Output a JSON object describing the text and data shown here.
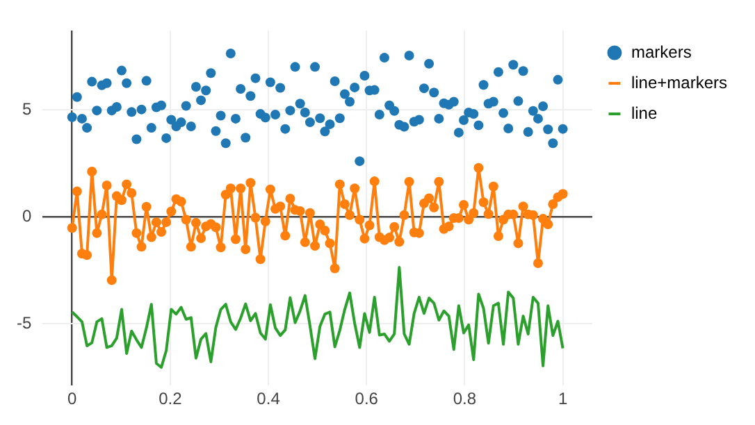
{
  "chart_data": {
    "type": "scatter",
    "x": [
      0,
      0.0101,
      0.0202,
      0.0303,
      0.0404,
      0.0505,
      0.0606,
      0.0707,
      0.0808,
      0.0909,
      0.101,
      0.1111,
      0.1212,
      0.1313,
      0.1414,
      0.1515,
      0.1616,
      0.1717,
      0.1818,
      0.1919,
      0.202,
      0.2121,
      0.2222,
      0.2323,
      0.2424,
      0.2525,
      0.2626,
      0.2727,
      0.2828,
      0.2929,
      0.303,
      0.3131,
      0.3232,
      0.3333,
      0.3434,
      0.3535,
      0.3636,
      0.3737,
      0.3838,
      0.3939,
      0.404,
      0.4141,
      0.4242,
      0.4343,
      0.4444,
      0.4545,
      0.4646,
      0.4747,
      0.4848,
      0.4949,
      0.5051,
      0.5152,
      0.5253,
      0.5354,
      0.5455,
      0.5556,
      0.5657,
      0.5758,
      0.5859,
      0.596,
      0.6061,
      0.6162,
      0.6263,
      0.6364,
      0.6465,
      0.6566,
      0.6667,
      0.6768,
      0.6869,
      0.697,
      0.7071,
      0.7172,
      0.7273,
      0.7374,
      0.7475,
      0.7576,
      0.7677,
      0.7778,
      0.7879,
      0.798,
      0.8081,
      0.8182,
      0.8283,
      0.8384,
      0.8485,
      0.8586,
      0.8687,
      0.8788,
      0.8889,
      0.899,
      0.9091,
      0.9192,
      0.9293,
      0.9394,
      0.9495,
      0.9596,
      0.9697,
      0.9798,
      0.9899,
      1
    ],
    "series": [
      {
        "name": "markers",
        "marker": "circle",
        "color": "#1f77b4",
        "values": [
          4.65,
          5.59,
          4.58,
          4.15,
          6.31,
          4.96,
          6.14,
          6.24,
          4.96,
          5.13,
          6.83,
          6.24,
          4.89,
          3.62,
          5.01,
          6.35,
          4.15,
          5.11,
          5.2,
          3.67,
          4.53,
          4.22,
          4.41,
          5.18,
          4.22,
          6.07,
          5.44,
          5.9,
          6.71,
          4.0,
          4.72,
          3.43,
          7.63,
          4.58,
          5.97,
          3.69,
          5.64,
          6.47,
          4.8,
          4.63,
          6.28,
          4.77,
          6.02,
          4.1,
          4.96,
          7.0,
          5.28,
          4.87,
          4.41,
          7.0,
          4.6,
          3.98,
          4.32,
          6.33,
          4.6,
          5.73,
          5.37,
          6.04,
          2.59,
          6.59,
          5.9,
          5.92,
          4.77,
          7.43,
          5.2,
          4.94,
          4.29,
          4.2,
          7.53,
          4.44,
          4.53,
          6.0,
          7.15,
          5.8,
          4.58,
          5.3,
          5.23,
          5.37,
          3.93,
          4.51,
          4.87,
          4.8,
          4.27,
          6.16,
          5.28,
          5.37,
          6.76,
          4.84,
          4.12,
          7.1,
          5.4,
          6.81,
          3.96,
          4.94,
          4.58,
          5.16,
          4.08,
          3.43,
          6.4,
          4.1
        ]
      },
      {
        "name": "line+markers",
        "type": "line",
        "marker": "circle",
        "color": "#ff7f0e",
        "values": [
          -0.53,
          1.18,
          -1.73,
          -1.8,
          2.11,
          -0.77,
          0.1,
          1.46,
          -2.97,
          0.96,
          0.77,
          1.51,
          1.1,
          -0.77,
          -1.41,
          0.46,
          -0.96,
          -0.26,
          -0.72,
          -0.26,
          0.24,
          0.82,
          0.7,
          -0.14,
          -1.41,
          -0.29,
          -1.01,
          -0.46,
          -0.34,
          -0.5,
          -1.44,
          1.03,
          1.32,
          -1.06,
          1.32,
          -1.53,
          1.58,
          -0.05,
          -1.99,
          -0.22,
          1.27,
          0.36,
          0.48,
          -0.89,
          0.84,
          0.31,
          0.26,
          -1.2,
          0.17,
          -1.37,
          -0.36,
          -0.65,
          -1.25,
          -2.42,
          1.51,
          0.58,
          0.07,
          1.32,
          -0.14,
          -1.03,
          -0.41,
          1.65,
          -0.96,
          -1.1,
          -0.98,
          -0.48,
          -1.18,
          0.07,
          1.63,
          -0.74,
          -0.77,
          0.62,
          0.86,
          0.43,
          1.63,
          -0.58,
          -0.46,
          -0.07,
          -0.07,
          0.55,
          -0.14,
          0.17,
          2.28,
          0.67,
          0.12,
          1.41,
          -0.91,
          -0.14,
          0.1,
          0.1,
          -1.25,
          0.48,
          0.1,
          0.07,
          -2.18,
          -0.1,
          -0.36,
          0.58,
          0.91,
          1.06
        ]
      },
      {
        "name": "line",
        "type": "line",
        "marker": "none",
        "color": "#2ca02c",
        "values": [
          -4.46,
          -4.68,
          -4.92,
          -6.04,
          -5.9,
          -4.92,
          -4.77,
          -6.12,
          -6.04,
          -5.68,
          -4.34,
          -6.4,
          -5.35,
          -5.76,
          -6.12,
          -5.2,
          -4.1,
          -6.86,
          -7.05,
          -6.26,
          -4.34,
          -4.56,
          -4.24,
          -4.8,
          -4.72,
          -6.62,
          -5.73,
          -5.47,
          -6.79,
          -5.18,
          -4.34,
          -4.1,
          -4.92,
          -5.28,
          -4.75,
          -4.08,
          -4.87,
          -4.53,
          -5.44,
          -5.73,
          -4.12,
          -5.2,
          -5.56,
          -5.3,
          -3.79,
          -4.96,
          -4.41,
          -3.69,
          -5.11,
          -6.64,
          -5.13,
          -4.56,
          -4.46,
          -6.09,
          -5.32,
          -4.34,
          -3.57,
          -4.99,
          -6.12,
          -4.53,
          -5.42,
          -3.77,
          -5.54,
          -5.49,
          -5.83,
          -5.49,
          -2.37,
          -5.49,
          -5.97,
          -4.53,
          -3.77,
          -4.53,
          -3.81,
          -4.05,
          -4.84,
          -4.41,
          -4.65,
          -6.21,
          -4.17,
          -5.44,
          -5.06,
          -6.69,
          -3.62,
          -4.29,
          -5.92,
          -4.17,
          -4.05,
          -5.97,
          -3.53,
          -3.81,
          -5.97,
          -4.65,
          -5.49,
          -3.77,
          -4.05,
          -6.98,
          -4.17,
          -5.56,
          -4.89,
          -6.16
        ]
      }
    ],
    "xlim": [
      -0.06,
      1.06
    ],
    "ylim": [
      -7.9,
      8.7
    ],
    "xticks": [
      0,
      0.2,
      0.4,
      0.6,
      0.8,
      1
    ],
    "yticks": [
      -5,
      0,
      5
    ],
    "grid": true,
    "legend": "top right"
  }
}
